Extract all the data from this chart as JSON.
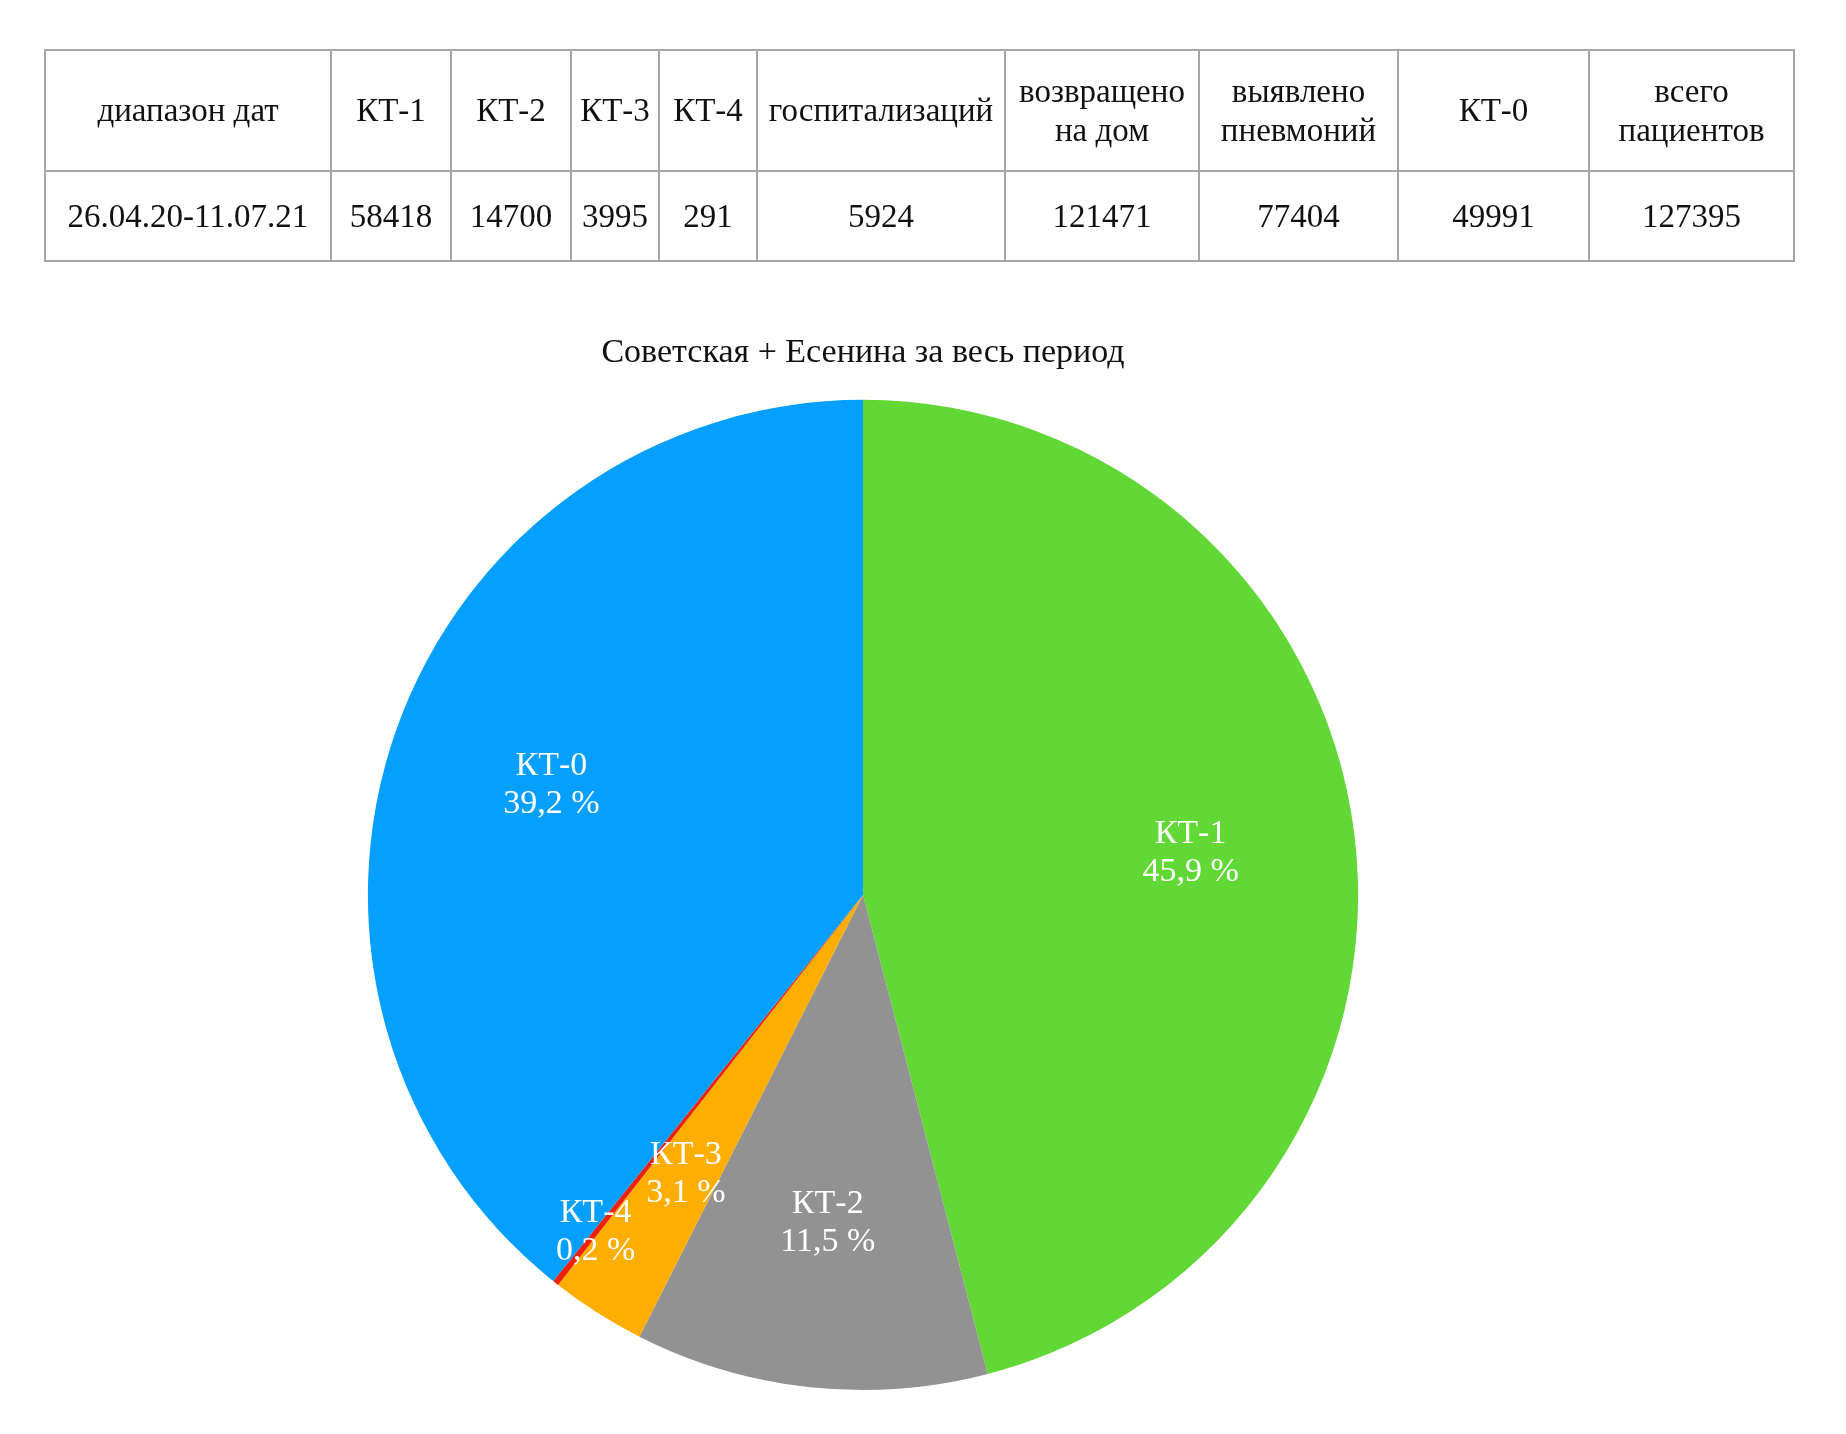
{
  "chart_data": [
    {
      "type": "other",
      "ylabel": "диапазон дат",
      "categories": [
        "КТ-1",
        "КТ-2",
        "КТ-3",
        "КТ-4",
        "госпитализаций",
        "возвращено на дом",
        "выявлено пневмоний",
        "КТ-0",
        "всего пациентов"
      ],
      "series": [
        {
          "name": "26.04.20-11.07.21",
          "values": [
            58418,
            14700,
            3995,
            291,
            5924,
            121471,
            77404,
            49991,
            127395
          ]
        }
      ],
      "data_labels": true
    },
    {
      "type": "pie",
      "title": "Советская + Есенина за весь период",
      "categories": [
        "КТ-1",
        "КТ-2",
        "КТ-3",
        "КТ-4",
        "КТ-0"
      ],
      "values": [
        45.9,
        11.5,
        3.1,
        0.2,
        39.2
      ],
      "colors": [
        "#61d836",
        "#929292",
        "#fdae00",
        "#ee220c",
        "#05a0ff"
      ],
      "value_labels": [
        "45,9 %",
        "11,5 %",
        "3,1 %",
        "0,2 %",
        "39,2 %"
      ]
    }
  ]
}
